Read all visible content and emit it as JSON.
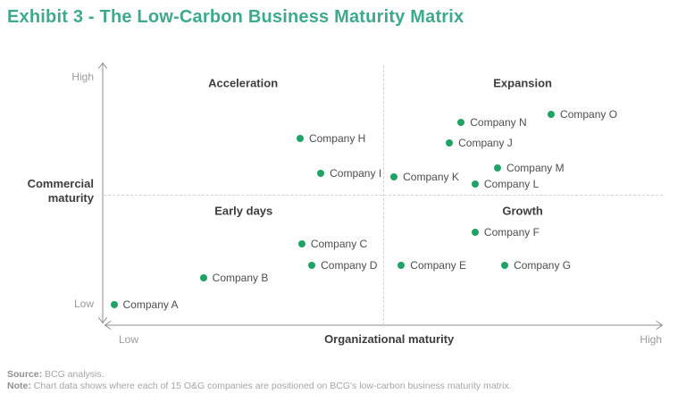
{
  "title": "Exhibit 3 - The Low-Carbon Business Maturity Matrix",
  "colors": {
    "title": "#3fa98e",
    "dot": "#1fa363",
    "axis": "#8e8e8e",
    "dashed_line": "#d2d2d2",
    "quadrant_text": "#3d3d3d",
    "muted_text": "#9a9a9a"
  },
  "axes": {
    "y_label": "Commercial maturity",
    "y_high": "High",
    "y_low": "Low",
    "x_label": "Organizational maturity",
    "x_low": "Low",
    "x_high": "High"
  },
  "chart_data": {
    "type": "scatter",
    "title": "The Low-Carbon Business Maturity Matrix",
    "xlabel": "Organizational maturity",
    "ylabel": "Commercial maturity",
    "x_axis_ticks": [
      "Low",
      "High"
    ],
    "y_axis_ticks": [
      "Low",
      "High"
    ],
    "xlim": [
      0,
      100
    ],
    "ylim": [
      0,
      100
    ],
    "grid": false,
    "legend": false,
    "quadrants": [
      {
        "label": "Acceleration",
        "position": "top-left",
        "cx_pct": 25.1,
        "cy_pct": 7.2
      },
      {
        "label": "Expansion",
        "position": "top-right",
        "cx_pct": 75.1,
        "cy_pct": 7.2
      },
      {
        "label": "Early days",
        "position": "bottom-left",
        "cx_pct": 25.2,
        "cy_pct": 56.2
      },
      {
        "label": "Growth",
        "position": "bottom-right",
        "cx_pct": 75.1,
        "cy_pct": 56.2
      }
    ],
    "points": [
      {
        "label": "Company A",
        "x": 2,
        "y": 8
      },
      {
        "label": "Company B",
        "x": 18,
        "y": 18
      },
      {
        "label": "Company C",
        "x": 35.6,
        "y": 31
      },
      {
        "label": "Company D",
        "x": 37.4,
        "y": 23
      },
      {
        "label": "Company E",
        "x": 53.4,
        "y": 23
      },
      {
        "label": "Company F",
        "x": 66.6,
        "y": 35.6
      },
      {
        "label": "Company G",
        "x": 71.9,
        "y": 23
      },
      {
        "label": "Company H",
        "x": 35.3,
        "y": 71.6
      },
      {
        "label": "Company I",
        "x": 39,
        "y": 58.2
      },
      {
        "label": "Company J",
        "x": 62,
        "y": 69.9
      },
      {
        "label": "Company K",
        "x": 52.1,
        "y": 56.8
      },
      {
        "label": "Company L",
        "x": 66.6,
        "y": 54.1
      },
      {
        "label": "Company M",
        "x": 70.6,
        "y": 60.3
      },
      {
        "label": "Company N",
        "x": 64.1,
        "y": 77.7
      },
      {
        "label": "Company O",
        "x": 80.2,
        "y": 80.8
      }
    ]
  },
  "footer": {
    "source_label": "Source:",
    "source_text": " BCG analysis.",
    "note_label": "Note:",
    "note_text": " Chart data shows where each of 15 O&G companies are positioned on BCG's low-carbon business maturity matrix."
  }
}
